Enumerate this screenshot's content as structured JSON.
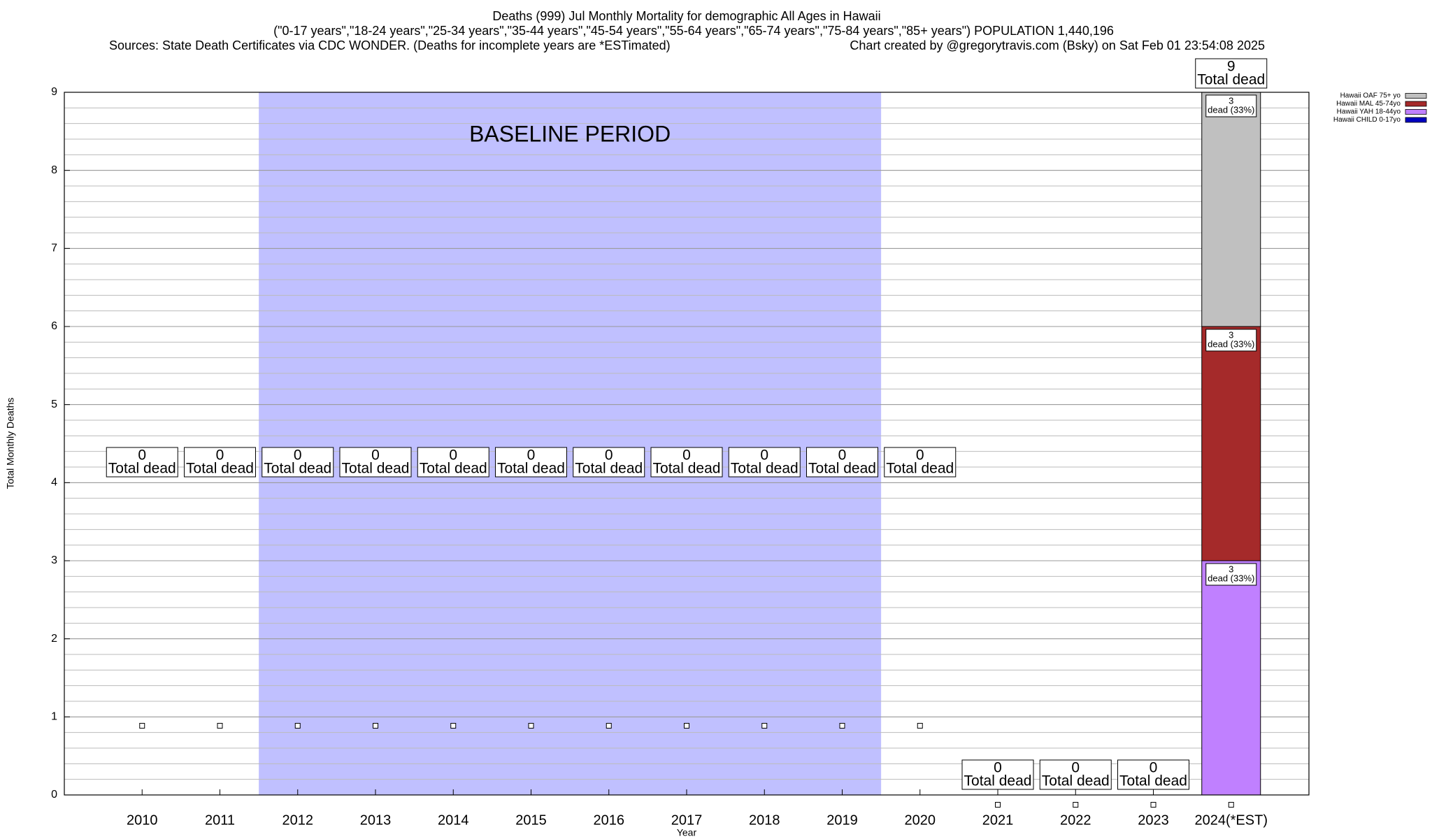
{
  "chart_data": {
    "type": "stacked_bar",
    "title": "Deaths (999) Jul Monthly Mortality for demographic All Ages in Hawaii",
    "subtitle": "(\"0-17 years\",\"18-24 years\",\"25-34 years\",\"35-44 years\",\"45-54 years\",\"55-64 years\",\"65-74 years\",\"75-84 years\",\"85+ years\") POPULATION 1,440,196",
    "source": "Sources: State Death Certificates via CDC WONDER. (Deaths for incomplete years are *ESTimated)",
    "credit": "Chart created by @gregorytravis.com (Bsky) on Sat Feb 01 23:54:08 2025",
    "x_label": "Year",
    "y_label": "Total Monthly Deaths",
    "categories": [
      "2010",
      "2011",
      "2012",
      "2013",
      "2014",
      "2015",
      "2016",
      "2017",
      "2018",
      "2019",
      "2020",
      "2021",
      "2022",
      "2023",
      "2024(*EST)"
    ],
    "series": [
      {
        "name": "Hawaii CHILD 0-17yo",
        "color": "#0000c0",
        "values": [
          0,
          0,
          0,
          0,
          0,
          0,
          0,
          0,
          0,
          0,
          0,
          0,
          0,
          0,
          0
        ],
        "percent_labels": [
          null,
          null,
          null,
          null,
          null,
          null,
          null,
          null,
          null,
          null,
          null,
          null,
          null,
          null,
          null
        ]
      },
      {
        "name": "Hawaii YAH 18-44yo",
        "color": "#c080ff",
        "values": [
          0,
          0,
          0,
          0,
          0,
          0,
          0,
          0,
          0,
          0,
          0,
          0,
          0,
          0,
          3
        ],
        "percent_labels": [
          null,
          null,
          null,
          null,
          null,
          null,
          null,
          null,
          null,
          null,
          null,
          null,
          null,
          null,
          "dead (33%)"
        ]
      },
      {
        "name": "Hawaii MAL 45-74yo",
        "color": "#a52a2a",
        "values": [
          0,
          0,
          0,
          0,
          0,
          0,
          0,
          0,
          0,
          0,
          0,
          0,
          0,
          0,
          3
        ],
        "percent_labels": [
          null,
          null,
          null,
          null,
          null,
          null,
          null,
          null,
          null,
          null,
          null,
          null,
          null,
          null,
          "dead (33%)"
        ]
      },
      {
        "name": "Hawaii OAF 75+ yo",
        "color": "#c0c0c0",
        "values": [
          0,
          0,
          0,
          0,
          0,
          0,
          0,
          0,
          0,
          0,
          0,
          0,
          0,
          0,
          3
        ],
        "percent_labels": [
          null,
          null,
          null,
          null,
          null,
          null,
          null,
          null,
          null,
          null,
          null,
          null,
          null,
          null,
          "dead (33%)"
        ]
      }
    ],
    "totals": [
      0,
      0,
      0,
      0,
      0,
      0,
      0,
      0,
      0,
      0,
      0,
      0,
      0,
      0,
      9
    ],
    "total_label": "Total dead",
    "baseline": {
      "label": "BASELINE PERIOD",
      "from": "2012",
      "to": "2019",
      "color": "#c0c0ff"
    },
    "ylim": [
      0,
      9
    ],
    "yticks": [
      0,
      1,
      2,
      3,
      4,
      5,
      6,
      7,
      8,
      9
    ],
    "grid": true,
    "legend": "top-right"
  }
}
